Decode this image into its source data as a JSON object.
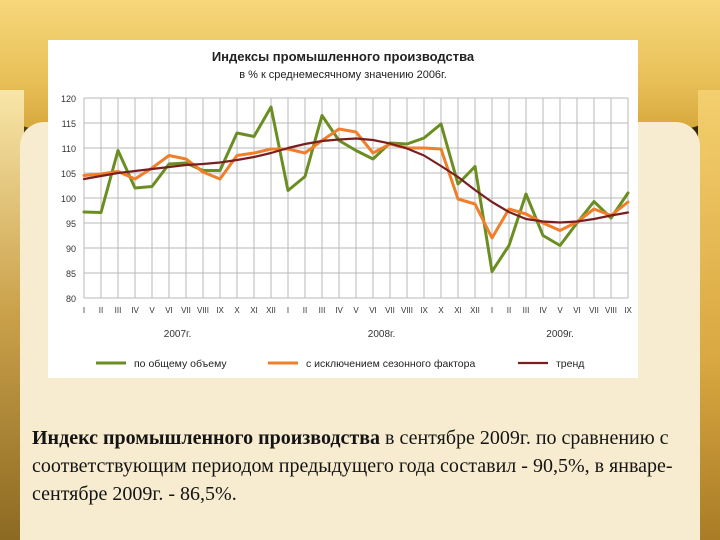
{
  "chart_data": {
    "type": "line",
    "title": "Индексы промышленного производства",
    "subtitle": "в % к среднемесячному значению 2006г.",
    "ylim": [
      80,
      120
    ],
    "yticks": [
      80,
      85,
      90,
      95,
      100,
      105,
      110,
      115,
      120
    ],
    "grid": true,
    "legend_position": "bottom",
    "categories": [
      "I",
      "II",
      "III",
      "IV",
      "V",
      "VI",
      "VII",
      "VIII",
      "IX",
      "X",
      "XI",
      "XII",
      "I",
      "II",
      "III",
      "IV",
      "V",
      "VI",
      "VII",
      "VIII",
      "IX",
      "X",
      "XI",
      "XII",
      "I",
      "II",
      "III",
      "IV",
      "V",
      "VI",
      "VII",
      "VIII",
      "IX"
    ],
    "year_labels": [
      "2007г.",
      "2008г.",
      "2009г."
    ],
    "series": [
      {
        "name": "по общему объему",
        "color": "#6b8e23",
        "values": [
          97.2,
          97.1,
          109.5,
          102.0,
          102.3,
          106.8,
          107.0,
          105.5,
          105.5,
          113.0,
          112.3,
          118.2,
          101.5,
          104.3,
          116.5,
          111.5,
          109.5,
          107.8,
          111.0,
          110.8,
          112.0,
          114.8,
          102.8,
          106.3,
          85.3,
          90.5,
          100.8,
          92.5,
          90.5,
          95.0,
          99.3,
          96.0,
          101.0
        ]
      },
      {
        "name": "с исключением сезонного фактора",
        "color": "#f07f2b",
        "values": [
          104.5,
          104.8,
          105.3,
          103.8,
          106.0,
          108.5,
          107.8,
          105.2,
          103.8,
          108.5,
          109.0,
          109.8,
          109.8,
          109.0,
          111.5,
          113.8,
          113.2,
          109.0,
          110.8,
          110.0,
          110.0,
          109.8,
          99.8,
          98.8,
          92.0,
          97.8,
          96.8,
          95.0,
          93.5,
          95.2,
          97.8,
          96.5,
          99.2
        ]
      },
      {
        "name": "тренд",
        "color": "#7a1f1f",
        "values": [
          103.8,
          104.4,
          105.0,
          105.4,
          105.8,
          106.2,
          106.6,
          106.8,
          107.1,
          107.6,
          108.2,
          109.0,
          110.0,
          110.8,
          111.4,
          111.7,
          111.9,
          111.6,
          110.9,
          109.9,
          108.5,
          106.4,
          104.2,
          101.6,
          99.2,
          97.2,
          95.8,
          95.3,
          95.1,
          95.3,
          95.8,
          96.5,
          97.1
        ]
      }
    ]
  },
  "caption": {
    "bold": "Индекс промышленного производства",
    "rest": " в сентябре 2009г. по сравнению с соответствующим периодом предыдущего года составил - 90,5%, в январе-сентябре 2009г. - 86,5%."
  }
}
